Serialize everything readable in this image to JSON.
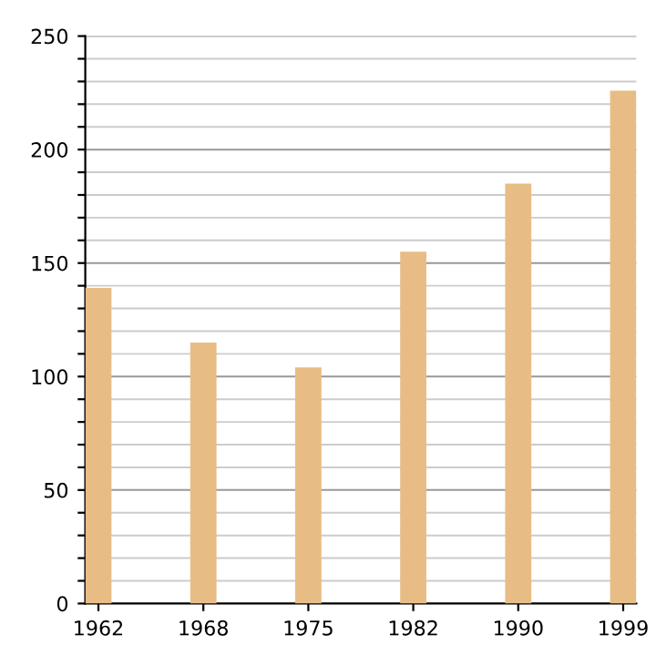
{
  "chart_data": {
    "type": "bar",
    "categories": [
      "1962",
      "1968",
      "1975",
      "1982",
      "1990",
      "1999"
    ],
    "values": [
      139,
      115,
      104,
      155,
      185,
      226
    ],
    "color": "#e8bd85",
    "ylim": [
      0,
      250
    ],
    "yticks": [
      0,
      {
        "value": 10,
        "label": null
      },
      {
        "value": 20,
        "label": null
      },
      {
        "value": 30,
        "label": null
      },
      {
        "value": 40,
        "label": null
      },
      50,
      {
        "value": 60,
        "label": null
      },
      {
        "value": 70,
        "label": null
      },
      {
        "value": 80,
        "label": null
      },
      {
        "value": 90,
        "label": null
      },
      100,
      {
        "value": 110,
        "label": null
      },
      {
        "value": 120,
        "label": null
      },
      {
        "value": 130,
        "label": null
      },
      {
        "value": 140,
        "label": null
      },
      150,
      {
        "value": 160,
        "label": null
      },
      {
        "value": 170,
        "label": null
      },
      {
        "value": 180,
        "label": null
      },
      {
        "value": 190,
        "label": null
      },
      200,
      {
        "value": 210,
        "label": null
      },
      {
        "value": 220,
        "label": null
      },
      {
        "value": 230,
        "label": null
      },
      {
        "value": 240,
        "label": null
      },
      250
    ],
    "grid": "y"
  }
}
